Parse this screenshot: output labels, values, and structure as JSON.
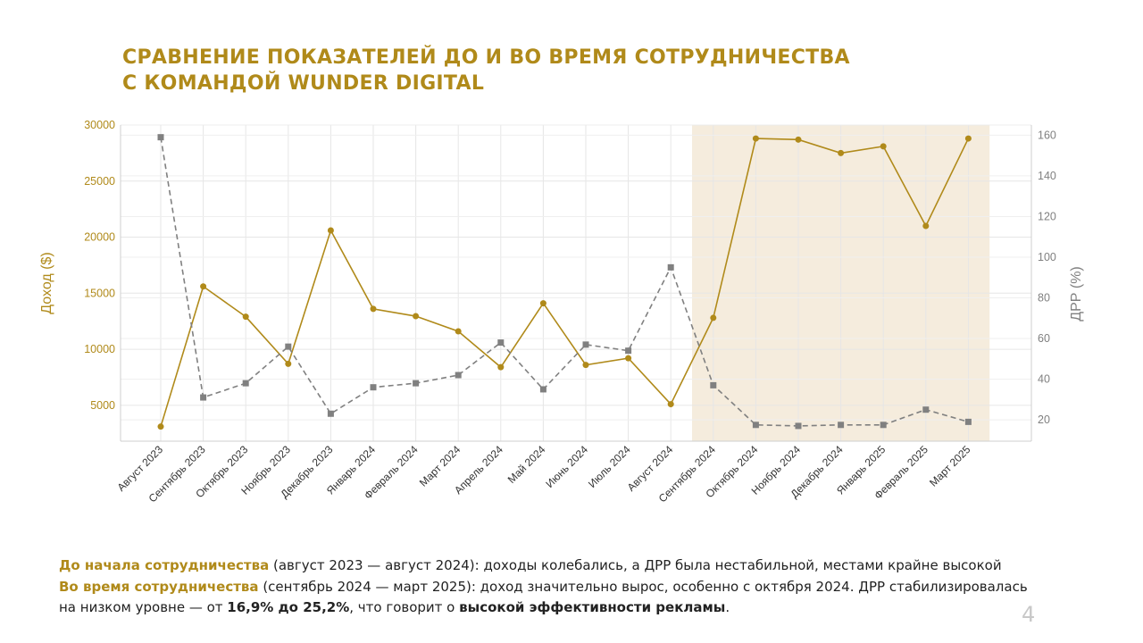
{
  "slide": {
    "title_line1": "СРАВНЕНИЕ ПОКАЗАТЕЛЕЙ ДО И ВО ВРЕМЯ СОТРУДНИЧЕСТВА",
    "title_line2": "С КОМАНДОЙ WUNDER DIGITAL",
    "page_number": "4"
  },
  "notes": {
    "before_label": "До начала сотрудничества",
    "before_text": " (август 2023 — август 2024): доходы колебались, а ДРР была нестабильной, местами крайне высокой",
    "during_label": "Во время сотрудничества",
    "during_text": " (сентябрь 2024 — март 2025): доход значительно вырос, особенно с октября 2024. ДРР стабилизировалась",
    "line3_start": "на низком уровне — от ",
    "range_bold": "16,9% до 25,2%",
    "line3_mid": ", что говорит о ",
    "effect_bold": "высокой эффективности рекламы",
    "line3_end": "."
  },
  "chart_data": {
    "type": "line",
    "categories": [
      "Август 2023",
      "Сентябрь 2023",
      "Октябрь 2023",
      "Ноябрь 2023",
      "Декабрь 2023",
      "Январь 2024",
      "Февраль 2024",
      "Март 2024",
      "Апрель 2024",
      "Май 2024",
      "Июнь 2024",
      "Июль 2024",
      "Август 2024",
      "Сентябрь 2024",
      "Октябрь 2024",
      "Ноябрь 2024",
      "Декабрь 2024",
      "Январь 2025",
      "Февраль 2025",
      "Март 2025"
    ],
    "series": [
      {
        "name": "Доход ($)",
        "axis": "left",
        "style": "solid",
        "color": "#b08a1a",
        "values": [
          3100,
          15600,
          12900,
          8700,
          20600,
          13600,
          12950,
          11600,
          8400,
          14100,
          8600,
          9200,
          5100,
          12800,
          28800,
          28700,
          27500,
          28100,
          21000,
          28800
        ]
      },
      {
        "name": "ДРР (%)",
        "axis": "right",
        "style": "dashed",
        "color": "#808080",
        "values": [
          159,
          31,
          38,
          56,
          23,
          36,
          38,
          42,
          58,
          35,
          57,
          54,
          95,
          37,
          17.5,
          17,
          17.5,
          17.5,
          25,
          19
        ]
      }
    ],
    "ylabel": "Доход ($)",
    "y2label": "ДРР (%)",
    "ylim": [
      1800,
      30000
    ],
    "y_ticks": [
      5000,
      10000,
      15000,
      20000,
      25000,
      30000
    ],
    "y2lim": [
      9.5,
      165
    ],
    "y2_ticks": [
      20,
      40,
      60,
      80,
      100,
      120,
      140,
      160
    ],
    "highlight_range": [
      "Сентябрь 2024",
      "Март 2025"
    ],
    "highlight_color": "#f5ecdd",
    "grid": true,
    "left_axis_color": "#b08a1a",
    "right_axis_color": "#808080"
  }
}
